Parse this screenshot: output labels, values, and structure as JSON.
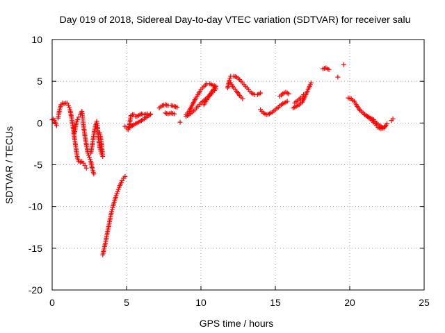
{
  "chart_data": {
    "type": "scatter",
    "title": "Day 019 of 2018, Sidereal Day-to-day VTEC variation (SDTVAR) for receiver salu",
    "xlabel": "GPS time / hours",
    "ylabel": "SDTVAR / TECUs",
    "xlim": [
      0,
      25
    ],
    "ylim": [
      -20,
      10
    ],
    "xticks": [
      "0",
      "5",
      "10",
      "15",
      "20",
      "25"
    ],
    "yticks": [
      "10",
      "5",
      "0",
      "-5",
      "-10",
      "-15",
      "-20"
    ],
    "grid": true,
    "marker": "+",
    "color": "#ff0000",
    "segments": [
      [
        [
          0.0,
          0.4
        ],
        [
          0.1,
          0.5
        ],
        [
          0.2,
          0.1
        ],
        [
          0.3,
          -0.3
        ]
      ],
      [
        [
          0.4,
          0.6
        ],
        [
          0.5,
          1.6
        ],
        [
          0.6,
          2.2
        ],
        [
          0.7,
          2.4
        ],
        [
          0.8,
          2.3
        ],
        [
          0.9,
          2.4
        ],
        [
          1.0,
          2.4
        ],
        [
          1.1,
          2.1
        ],
        [
          1.2,
          1.6
        ],
        [
          1.3,
          0.7
        ],
        [
          1.4,
          -0.5
        ],
        [
          1.5,
          -1.8
        ],
        [
          1.6,
          -3.0
        ],
        [
          1.7,
          -4.2
        ],
        [
          1.8,
          -4.6
        ],
        [
          1.9,
          -4.7
        ],
        [
          2.0,
          -4.6
        ],
        [
          2.1,
          -4.8
        ],
        [
          2.2,
          -5.1
        ],
        [
          2.3,
          -5.4
        ]
      ],
      [
        [
          1.5,
          -1.2
        ],
        [
          1.6,
          -0.2
        ],
        [
          1.7,
          0.4
        ],
        [
          1.8,
          0.7
        ],
        [
          1.9,
          1.0
        ],
        [
          2.0,
          1.4
        ],
        [
          2.05,
          0.7
        ],
        [
          2.1,
          -0.2
        ],
        [
          2.2,
          -1.5
        ],
        [
          2.3,
          -2.6
        ],
        [
          2.4,
          -3.6
        ],
        [
          2.5,
          -4.1
        ],
        [
          2.6,
          -4.6
        ],
        [
          2.7,
          -5.5
        ],
        [
          2.8,
          -6.1
        ]
      ],
      [
        [
          2.6,
          -3.6
        ],
        [
          2.7,
          -2.6
        ],
        [
          2.8,
          -1.4
        ],
        [
          2.9,
          -0.4
        ],
        [
          3.0,
          0.2
        ],
        [
          3.05,
          -0.5
        ],
        [
          3.1,
          -1.6
        ],
        [
          3.2,
          -2.9
        ],
        [
          3.3,
          -3.6
        ],
        [
          3.4,
          -4.0
        ],
        [
          3.3,
          -2.2
        ],
        [
          3.2,
          -1.2
        ]
      ],
      [
        [
          3.4,
          -15.8
        ],
        [
          3.5,
          -15.0
        ],
        [
          3.6,
          -14.2
        ],
        [
          3.7,
          -13.2
        ],
        [
          3.8,
          -12.4
        ],
        [
          3.9,
          -11.4
        ],
        [
          4.0,
          -10.6
        ],
        [
          4.1,
          -9.9
        ],
        [
          4.2,
          -9.3
        ],
        [
          4.3,
          -8.7
        ],
        [
          4.4,
          -8.2
        ],
        [
          4.5,
          -7.7
        ],
        [
          4.6,
          -7.3
        ],
        [
          4.7,
          -6.9
        ],
        [
          4.8,
          -6.6
        ],
        [
          4.9,
          -6.4
        ]
      ],
      [
        [
          4.9,
          -0.4
        ],
        [
          5.0,
          -0.6
        ],
        [
          5.1,
          -0.8
        ],
        [
          5.2,
          -0.2
        ],
        [
          5.3,
          0.9
        ],
        [
          5.4,
          1.0
        ],
        [
          5.5,
          1.0
        ],
        [
          5.6,
          0.8
        ],
        [
          5.7,
          0.8
        ],
        [
          5.8,
          0.9
        ],
        [
          5.9,
          1.0
        ],
        [
          6.0,
          1.1
        ],
        [
          6.2,
          1.0
        ],
        [
          6.4,
          1.1
        ],
        [
          6.6,
          1.1
        ]
      ],
      [
        [
          5.2,
          -0.5
        ],
        [
          5.4,
          -0.3
        ],
        [
          5.6,
          -0.1
        ],
        [
          5.8,
          0.1
        ],
        [
          6.0,
          0.3
        ],
        [
          6.2,
          0.5
        ],
        [
          6.4,
          0.8
        ],
        [
          6.6,
          1.0
        ]
      ],
      [
        [
          7.2,
          1.8
        ],
        [
          7.4,
          2.1
        ],
        [
          7.6,
          2.2
        ],
        [
          7.8,
          2.1
        ],
        [
          8.0,
          2.1
        ],
        [
          8.2,
          2.0
        ],
        [
          8.4,
          1.9
        ]
      ],
      [
        [
          7.6,
          1.2
        ],
        [
          7.8,
          1.1
        ],
        [
          8.0,
          1.2
        ],
        [
          8.2,
          1.1
        ]
      ],
      [
        [
          8.6,
          0.1
        ]
      ],
      [
        [
          9.0,
          1.0
        ],
        [
          9.2,
          1.4
        ],
        [
          9.4,
          2.1
        ],
        [
          9.6,
          2.8
        ],
        [
          9.8,
          3.4
        ],
        [
          10.0,
          4.0
        ],
        [
          10.2,
          4.4
        ],
        [
          10.4,
          4.7
        ],
        [
          10.6,
          4.7
        ],
        [
          10.8,
          4.5
        ],
        [
          11.0,
          4.4
        ]
      ],
      [
        [
          9.0,
          0.8
        ],
        [
          9.2,
          1.0
        ],
        [
          9.4,
          1.3
        ],
        [
          9.6,
          1.6
        ],
        [
          9.8,
          2.0
        ],
        [
          10.0,
          2.4
        ],
        [
          10.2,
          2.7
        ],
        [
          10.4,
          3.0
        ],
        [
          10.6,
          3.3
        ],
        [
          10.8,
          3.7
        ],
        [
          11.0,
          4.1
        ]
      ],
      [
        [
          10.2,
          2.2
        ],
        [
          10.4,
          2.8
        ],
        [
          10.6,
          3.4
        ],
        [
          10.8,
          3.9
        ],
        [
          11.0,
          4.4
        ]
      ],
      [
        [
          11.8,
          4.2
        ],
        [
          11.9,
          5.1
        ],
        [
          12.0,
          5.6
        ],
        [
          12.2,
          5.6
        ],
        [
          12.4,
          5.5
        ],
        [
          12.6,
          5.2
        ],
        [
          12.8,
          4.8
        ],
        [
          13.0,
          4.4
        ],
        [
          13.2,
          4.0
        ],
        [
          13.4,
          3.6
        ],
        [
          13.6,
          3.4
        ],
        [
          13.8,
          3.4
        ],
        [
          14.0,
          3.6
        ]
      ],
      [
        [
          12.0,
          4.8
        ],
        [
          12.2,
          4.2
        ],
        [
          12.4,
          3.8
        ],
        [
          12.6,
          3.3
        ],
        [
          12.8,
          2.9
        ]
      ],
      [
        [
          14.0,
          1.6
        ],
        [
          14.2,
          1.2
        ],
        [
          14.4,
          1.0
        ],
        [
          14.6,
          1.1
        ],
        [
          14.8,
          1.3
        ],
        [
          15.0,
          1.6
        ],
        [
          15.2,
          1.9
        ],
        [
          15.4,
          2.2
        ],
        [
          15.6,
          2.4
        ],
        [
          15.8,
          2.6
        ]
      ],
      [
        [
          15.3,
          3.2
        ],
        [
          15.5,
          3.5
        ],
        [
          15.7,
          3.7
        ],
        [
          15.9,
          3.5
        ]
      ],
      [
        [
          16.2,
          1.8
        ],
        [
          16.4,
          2.0
        ],
        [
          16.6,
          2.2
        ],
        [
          16.8,
          2.5
        ],
        [
          17.0,
          3.2
        ],
        [
          17.2,
          4.0
        ],
        [
          17.4,
          4.8
        ]
      ],
      [
        [
          16.3,
          2.4
        ],
        [
          16.5,
          2.7
        ],
        [
          16.7,
          3.0
        ],
        [
          16.9,
          3.4
        ]
      ],
      [
        [
          18.2,
          6.5
        ],
        [
          18.4,
          6.6
        ],
        [
          18.6,
          6.4
        ]
      ],
      [
        [
          19.2,
          5.5
        ]
      ],
      [
        [
          19.6,
          7.0
        ]
      ],
      [
        [
          19.9,
          3.0
        ],
        [
          20.1,
          2.9
        ],
        [
          20.3,
          2.6
        ],
        [
          20.5,
          2.0
        ],
        [
          20.7,
          1.5
        ],
        [
          20.9,
          1.2
        ],
        [
          21.1,
          0.9
        ],
        [
          21.3,
          0.6
        ],
        [
          21.5,
          0.3
        ],
        [
          21.7,
          -0.1
        ],
        [
          21.9,
          -0.5
        ],
        [
          22.1,
          -0.7
        ],
        [
          22.3,
          -0.6
        ],
        [
          22.5,
          -0.1
        ]
      ],
      [
        [
          21.0,
          1.0
        ],
        [
          21.2,
          0.8
        ],
        [
          21.4,
          0.6
        ],
        [
          21.6,
          0.4
        ],
        [
          21.8,
          0.0
        ],
        [
          22.0,
          -0.3
        ],
        [
          22.2,
          -0.5
        ]
      ],
      [
        [
          22.8,
          0.3
        ],
        [
          22.9,
          0.5
        ]
      ]
    ]
  }
}
